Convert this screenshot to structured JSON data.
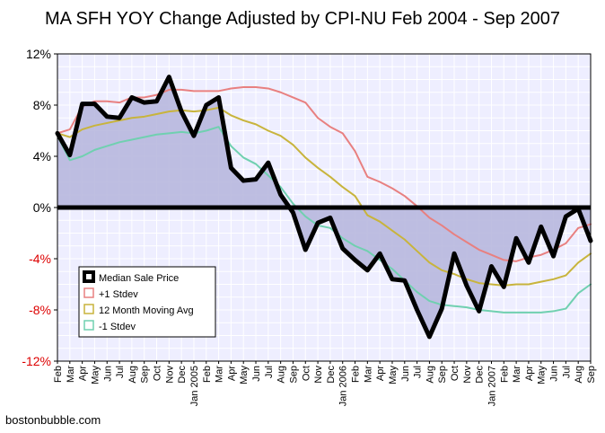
{
  "chart_data": {
    "type": "line",
    "title": "MA SFH YOY Change Adjusted by CPI-NU Feb 2004 - Sep 2007",
    "xlabel": "",
    "ylabel": "",
    "ylim": [
      -12,
      12
    ],
    "yticks": [
      "12%",
      "8%",
      "4%",
      "0%",
      "-4%",
      "-8%",
      "-12%"
    ],
    "ytick_values": [
      12,
      8,
      4,
      0,
      -4,
      -8,
      -12
    ],
    "grid": true,
    "legend_position": "bottom-left",
    "x_labels": [
      "Feb",
      "Mar",
      "Apr",
      "May",
      "Jun",
      "Jul",
      "Aug",
      "Sep",
      "Oct",
      "Nov",
      "Dec",
      "Jan 2005",
      "Feb",
      "Mar",
      "Apr",
      "May",
      "Jun",
      "Jul",
      "Aug",
      "Sep",
      "Oct",
      "Nov",
      "Dec",
      "Jan 2006",
      "Feb",
      "Mar",
      "Apr",
      "May",
      "Jun",
      "Jul",
      "Aug",
      "Sep",
      "Oct",
      "Nov",
      "Dec",
      "Jan 2007",
      "Feb",
      "Mar",
      "Apr",
      "May",
      "Jun",
      "Jul",
      "Aug",
      "Sep"
    ],
    "series": [
      {
        "name": "Median Sale Price",
        "color": "#000000",
        "values": [
          5.8,
          4.1,
          8.1,
          8.1,
          7.1,
          7.0,
          8.6,
          8.2,
          8.3,
          10.2,
          7.5,
          5.6,
          8.0,
          8.6,
          3.1,
          2.1,
          2.2,
          3.5,
          1.0,
          -0.4,
          -3.3,
          -1.2,
          -0.8,
          -3.2,
          -4.1,
          -4.9,
          -3.6,
          -5.6,
          -5.7,
          -8.0,
          -10.1,
          -7.9,
          -3.6,
          -6.1,
          -8.1,
          -4.6,
          -6.2,
          -2.4,
          -4.3,
          -1.5,
          -3.8,
          -0.7,
          -0.1,
          -2.6
        ]
      },
      {
        "name": "+1 Stdev",
        "color": "#e88080",
        "values": [
          5.8,
          6.1,
          7.9,
          8.3,
          8.3,
          8.2,
          8.6,
          8.6,
          8.8,
          9.2,
          9.2,
          9.1,
          9.1,
          9.1,
          9.3,
          9.4,
          9.4,
          9.3,
          9.0,
          8.6,
          8.2,
          7.0,
          6.3,
          5.8,
          4.4,
          2.4,
          2.0,
          1.5,
          0.9,
          0.1,
          -0.8,
          -1.4,
          -2.1,
          -2.7,
          -3.3,
          -3.7,
          -4.1,
          -4.2,
          -3.9,
          -3.7,
          -3.3,
          -2.8,
          -1.6,
          -1.3
        ]
      },
      {
        "name": "12 Month Moving Avg",
        "color": "#c8b43c",
        "values": [
          5.8,
          5.5,
          6.1,
          6.4,
          6.6,
          6.8,
          7.0,
          7.1,
          7.3,
          7.5,
          7.6,
          7.5,
          7.6,
          7.8,
          7.2,
          6.8,
          6.5,
          6.0,
          5.6,
          4.9,
          3.9,
          3.1,
          2.4,
          1.6,
          0.9,
          -0.6,
          -1.1,
          -1.8,
          -2.5,
          -3.4,
          -4.3,
          -4.9,
          -5.2,
          -5.6,
          -5.9,
          -6.0,
          -6.1,
          -6.0,
          -6.0,
          -5.8,
          -5.6,
          -5.3,
          -4.3,
          -3.6
        ]
      },
      {
        "name": "-1 Stdev",
        "color": "#70d0b0",
        "values": [
          5.6,
          3.7,
          4.0,
          4.5,
          4.8,
          5.1,
          5.3,
          5.5,
          5.7,
          5.8,
          5.9,
          5.8,
          6.0,
          6.3,
          4.8,
          3.9,
          3.4,
          2.5,
          1.6,
          0.3,
          -0.7,
          -1.4,
          -1.6,
          -2.4,
          -3.0,
          -3.4,
          -4.1,
          -4.8,
          -5.7,
          -6.6,
          -7.3,
          -7.6,
          -7.7,
          -7.8,
          -8.0,
          -8.1,
          -8.2,
          -8.2,
          -8.2,
          -8.2,
          -8.1,
          -7.9,
          -6.7,
          -6.0
        ]
      }
    ],
    "shaded_area_series": "Median Sale Price",
    "shaded_area_color": "#b4b4dc",
    "zero_line": true
  },
  "credit": "bostonbubble.com"
}
